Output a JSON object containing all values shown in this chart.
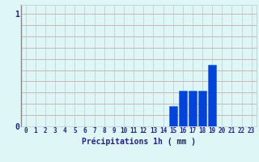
{
  "hours": [
    0,
    1,
    2,
    3,
    4,
    5,
    6,
    7,
    8,
    9,
    10,
    11,
    12,
    13,
    14,
    15,
    16,
    17,
    18,
    19,
    20,
    21,
    22,
    23
  ],
  "values": [
    0,
    0,
    0,
    0,
    0,
    0,
    0,
    0,
    0,
    0,
    0,
    0,
    0,
    0,
    0,
    0.18,
    0.32,
    0.32,
    0.32,
    0.55,
    0,
    0,
    0,
    0
  ],
  "bar_color": "#0044dd",
  "bar_edge_color": "#0066ff",
  "background_color": "#dff6f6",
  "grid_color_h": "#cc9999",
  "grid_color_v": "#bbcccc",
  "axis_color": "#222288",
  "xlabel": "Précipitations 1h ( mm )",
  "xlabel_fontsize": 7,
  "tick_fontsize": 5.5,
  "ytick_fontsize": 7,
  "yticks": [
    0,
    1
  ],
  "ylim": [
    0,
    1.08
  ],
  "xlim": [
    -0.5,
    23.5
  ]
}
